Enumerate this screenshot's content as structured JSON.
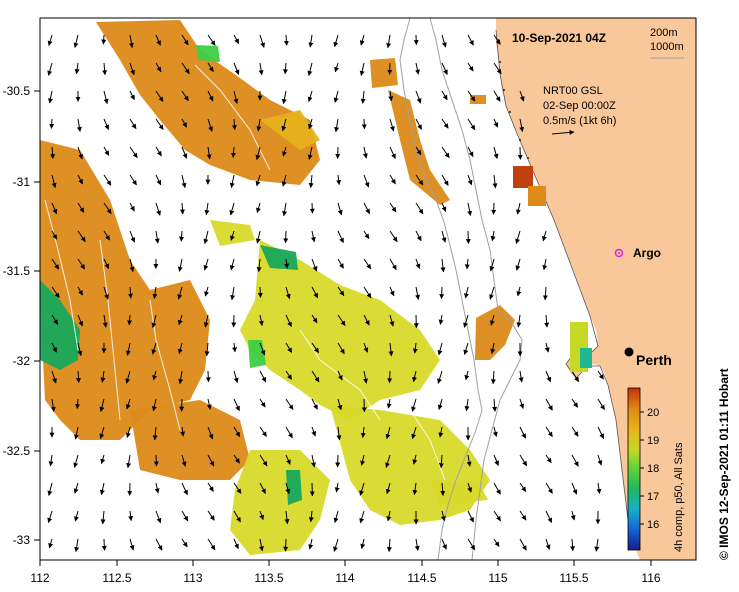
{
  "map": {
    "timestamp": "10-Sep-2021 04Z",
    "depth_contours": [
      "200m",
      "1000m"
    ],
    "current_model": "NRT00 GSL",
    "current_time": "02-Sep 00:00Z",
    "scale_vector": "0.5m/s (1kt 6h)",
    "credit": "© IMOS 12-Sep-2021 01:11 Hobart",
    "colors": {
      "land": "#f9c89a",
      "warm": "#dd8a18",
      "mid": "#e6b21e",
      "yellow": "#d9d92a",
      "green": "#3fcf45",
      "cool": "#17a95c"
    }
  },
  "axes": {
    "x_ticks": [
      "112",
      "112.5",
      "113",
      "113.5",
      "114",
      "114.5",
      "115",
      "115.5",
      "116"
    ],
    "y_ticks": [
      "-30.5",
      "-31",
      "-31.5",
      "-32",
      "-32.5",
      "-33"
    ]
  },
  "places": {
    "argo": "Argo",
    "perth": "Perth"
  },
  "colorbar": {
    "ticks": [
      "20",
      "19",
      "18",
      "17",
      "16"
    ],
    "label": "4h comp, p50, All Sats"
  }
}
